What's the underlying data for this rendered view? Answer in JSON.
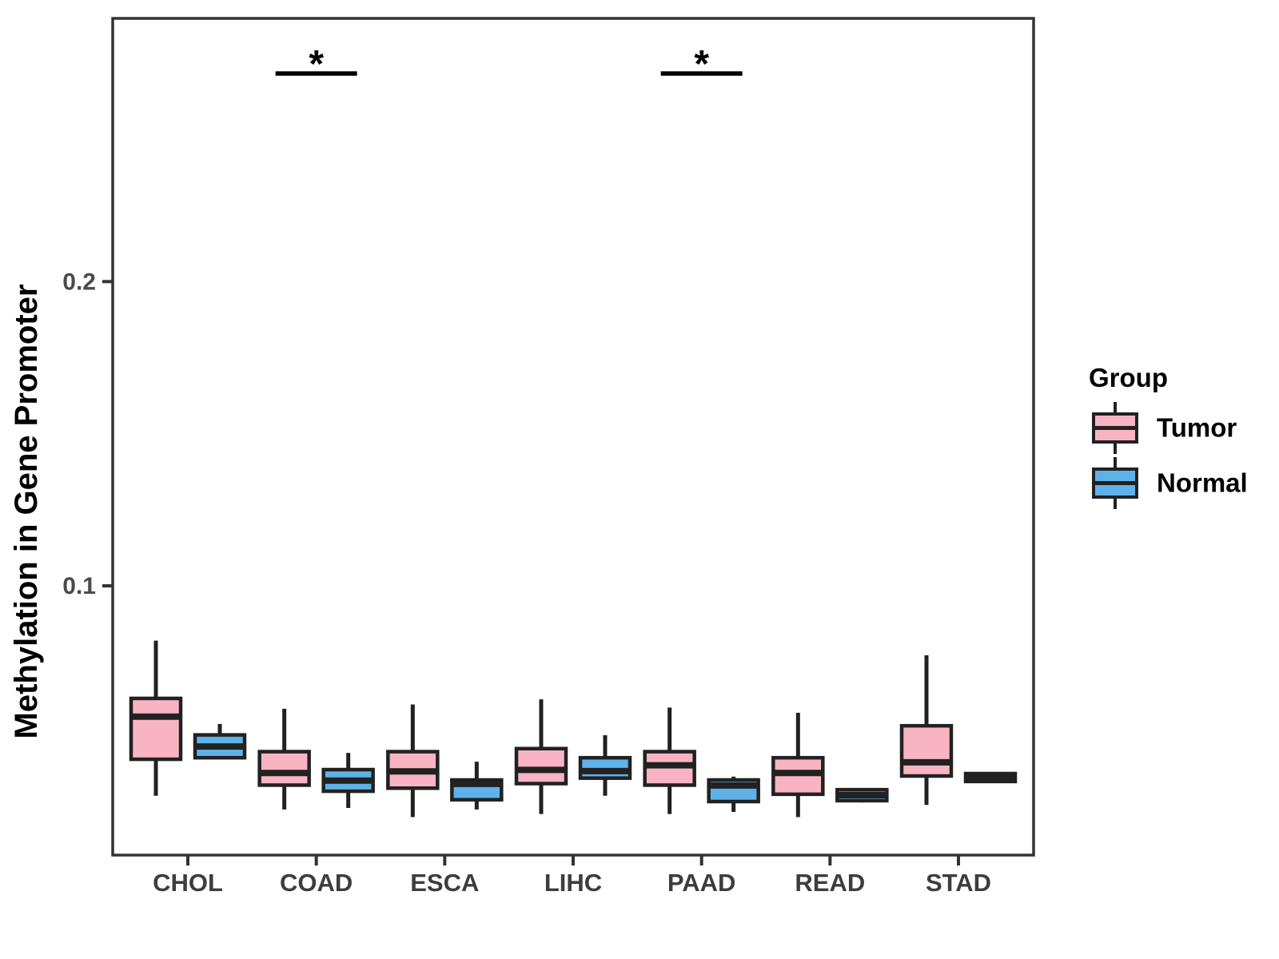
{
  "chart_data": {
    "type": "box",
    "title": "",
    "ylabel": "Methylation in Gene Promoter",
    "xlabel": "",
    "categories": [
      "CHOL",
      "COAD",
      "ESCA",
      "LIHC",
      "PAAD",
      "READ",
      "STAD"
    ],
    "ylim": [
      0.0115,
      0.2865
    ],
    "yticks": [
      {
        "value": 0.1,
        "label": "0.1"
      },
      {
        "value": 0.2,
        "label": "0.2"
      }
    ],
    "grid": "off",
    "legend_position": "right",
    "legend_title": "Group",
    "series": [
      {
        "name": "Tumor",
        "color": "#F9B4C4",
        "boxes": [
          {
            "category": "CHOL",
            "whisker_low": 0.031,
            "q1": 0.043,
            "median": 0.057,
            "q3": 0.063,
            "whisker_high": 0.082
          },
          {
            "category": "COAD",
            "whisker_low": 0.0265,
            "q1": 0.0345,
            "median": 0.0385,
            "q3": 0.0455,
            "whisker_high": 0.0596
          },
          {
            "category": "ESCA",
            "whisker_low": 0.024,
            "q1": 0.0335,
            "median": 0.039,
            "q3": 0.0455,
            "whisker_high": 0.061
          },
          {
            "category": "LIHC",
            "whisker_low": 0.025,
            "q1": 0.035,
            "median": 0.0395,
            "q3": 0.0465,
            "whisker_high": 0.0627
          },
          {
            "category": "PAAD",
            "whisker_low": 0.025,
            "q1": 0.0345,
            "median": 0.041,
            "q3": 0.0455,
            "whisker_high": 0.06
          },
          {
            "category": "READ",
            "whisker_low": 0.024,
            "q1": 0.0315,
            "median": 0.0385,
            "q3": 0.0435,
            "whisker_high": 0.0583
          },
          {
            "category": "STAD",
            "whisker_low": 0.028,
            "q1": 0.0375,
            "median": 0.042,
            "q3": 0.054,
            "whisker_high": 0.0772
          }
        ]
      },
      {
        "name": "Normal",
        "color": "#5FB2E8",
        "boxes": [
          {
            "category": "CHOL",
            "whisker_low": 0.0435,
            "q1": 0.0435,
            "median": 0.0472,
            "q3": 0.051,
            "whisker_high": 0.0546
          },
          {
            "category": "COAD",
            "whisker_low": 0.027,
            "q1": 0.0325,
            "median": 0.036,
            "q3": 0.0396,
            "whisker_high": 0.0451
          },
          {
            "category": "ESCA",
            "whisker_low": 0.0265,
            "q1": 0.0297,
            "median": 0.0349,
            "q3": 0.0362,
            "whisker_high": 0.0422
          },
          {
            "category": "LIHC",
            "whisker_low": 0.031,
            "q1": 0.0368,
            "median": 0.0391,
            "q3": 0.0435,
            "whisker_high": 0.0509
          },
          {
            "category": "PAAD",
            "whisker_low": 0.0257,
            "q1": 0.0291,
            "median": 0.0344,
            "q3": 0.0362,
            "whisker_high": 0.0373
          },
          {
            "category": "READ",
            "whisker_low": 0.0288,
            "q1": 0.0294,
            "median": 0.0312,
            "q3": 0.033,
            "whisker_high": 0.033
          },
          {
            "category": "STAD",
            "whisker_low": 0.0357,
            "q1": 0.0357,
            "median": 0.037,
            "q3": 0.0383,
            "whisker_high": 0.0383
          }
        ]
      }
    ],
    "significance": [
      {
        "category": "COAD",
        "label": "*"
      },
      {
        "category": "PAAD",
        "label": "*"
      }
    ],
    "style": {
      "box_stroke": "#212121",
      "panel_border": "#333333",
      "tick_color": "#333333"
    }
  }
}
